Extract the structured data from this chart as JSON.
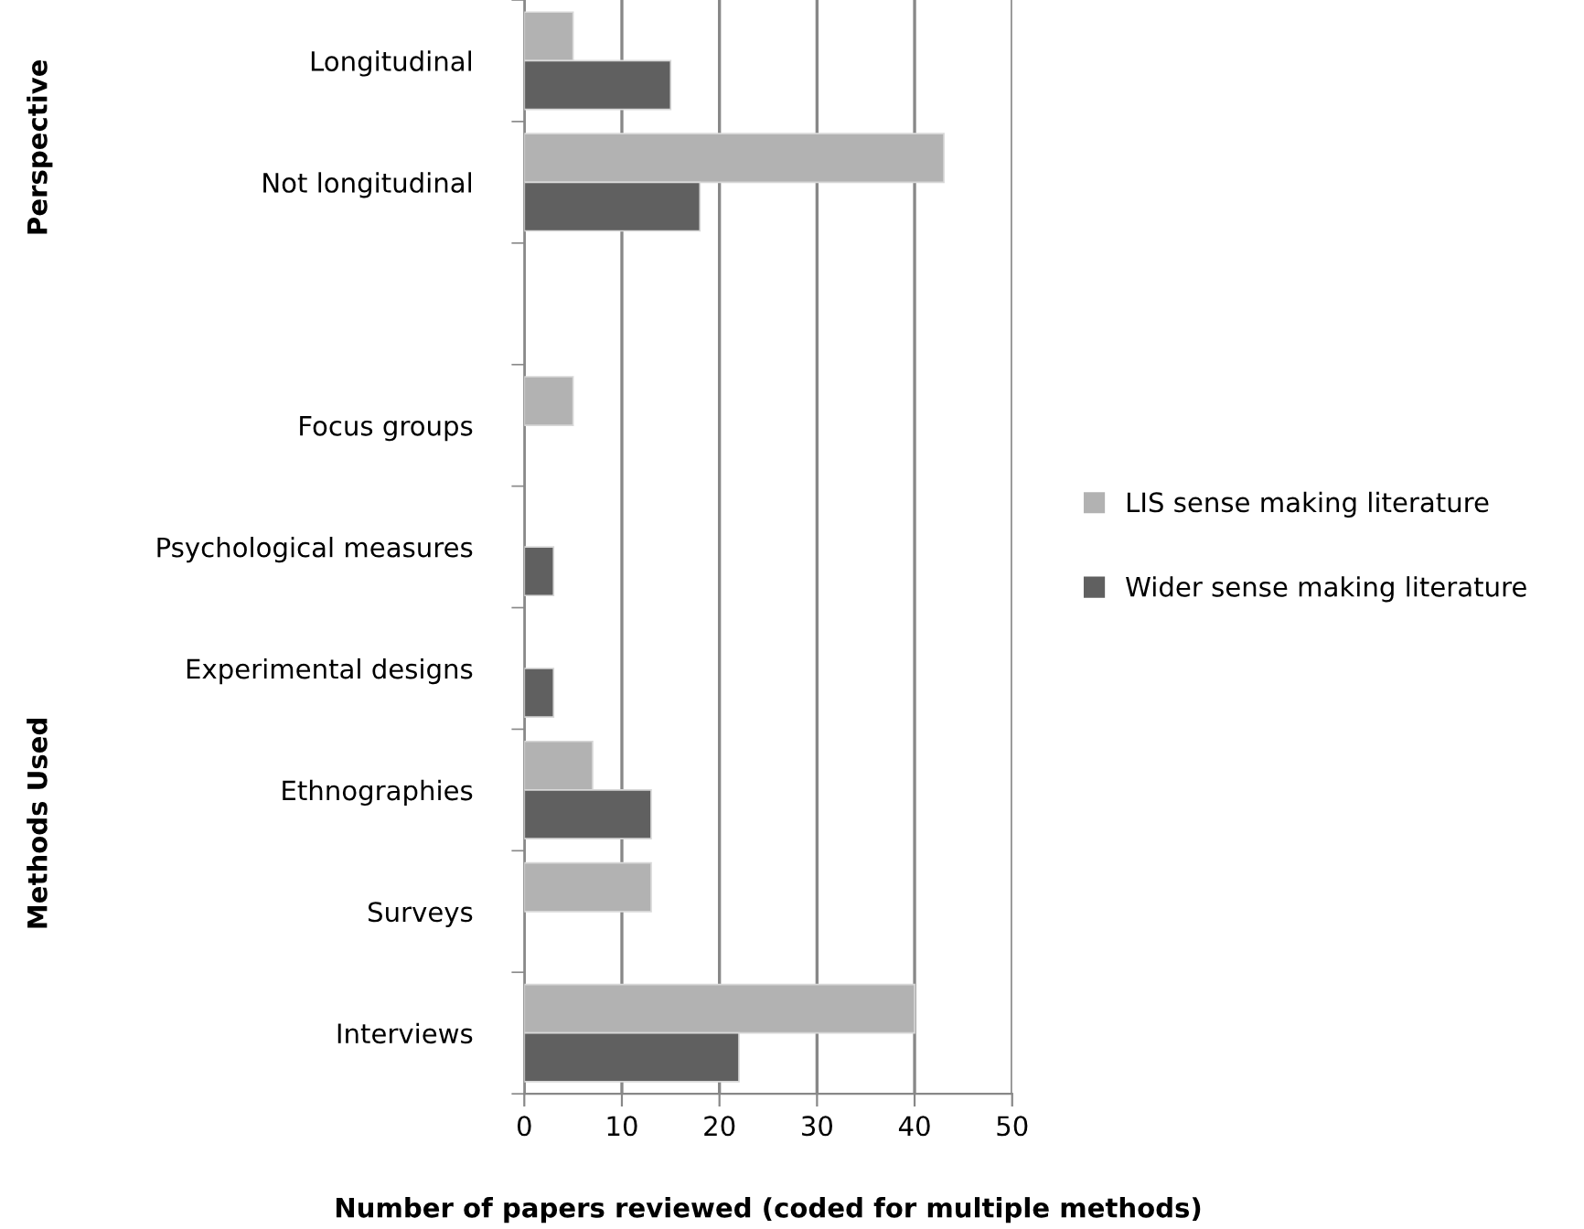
{
  "chart_data": {
    "type": "bar",
    "orientation": "horizontal",
    "xlabel": "Number of papers reviewed (coded for multiple methods)",
    "categories": [
      "Longitudinal",
      "Not longitudinal",
      null,
      "Focus groups",
      "Psychological measures",
      "Experimental designs",
      "Ethnographies",
      "Surveys",
      "Interviews"
    ],
    "series": [
      {
        "name": "LIS sense making literature",
        "color": "#b2b2b2",
        "values": [
          5,
          43,
          null,
          5,
          null,
          null,
          7,
          13,
          40
        ]
      },
      {
        "name": "Wider sense making literature",
        "color": "#606060",
        "values": [
          15,
          18,
          null,
          null,
          3,
          3,
          13,
          null,
          22
        ]
      }
    ],
    "xlim": [
      0,
      50
    ],
    "xticks": [
      0,
      10,
      20,
      30,
      40,
      50
    ],
    "grid": "x",
    "legend": "right",
    "annotations": [
      "Perspective",
      "Methods Used"
    ]
  }
}
